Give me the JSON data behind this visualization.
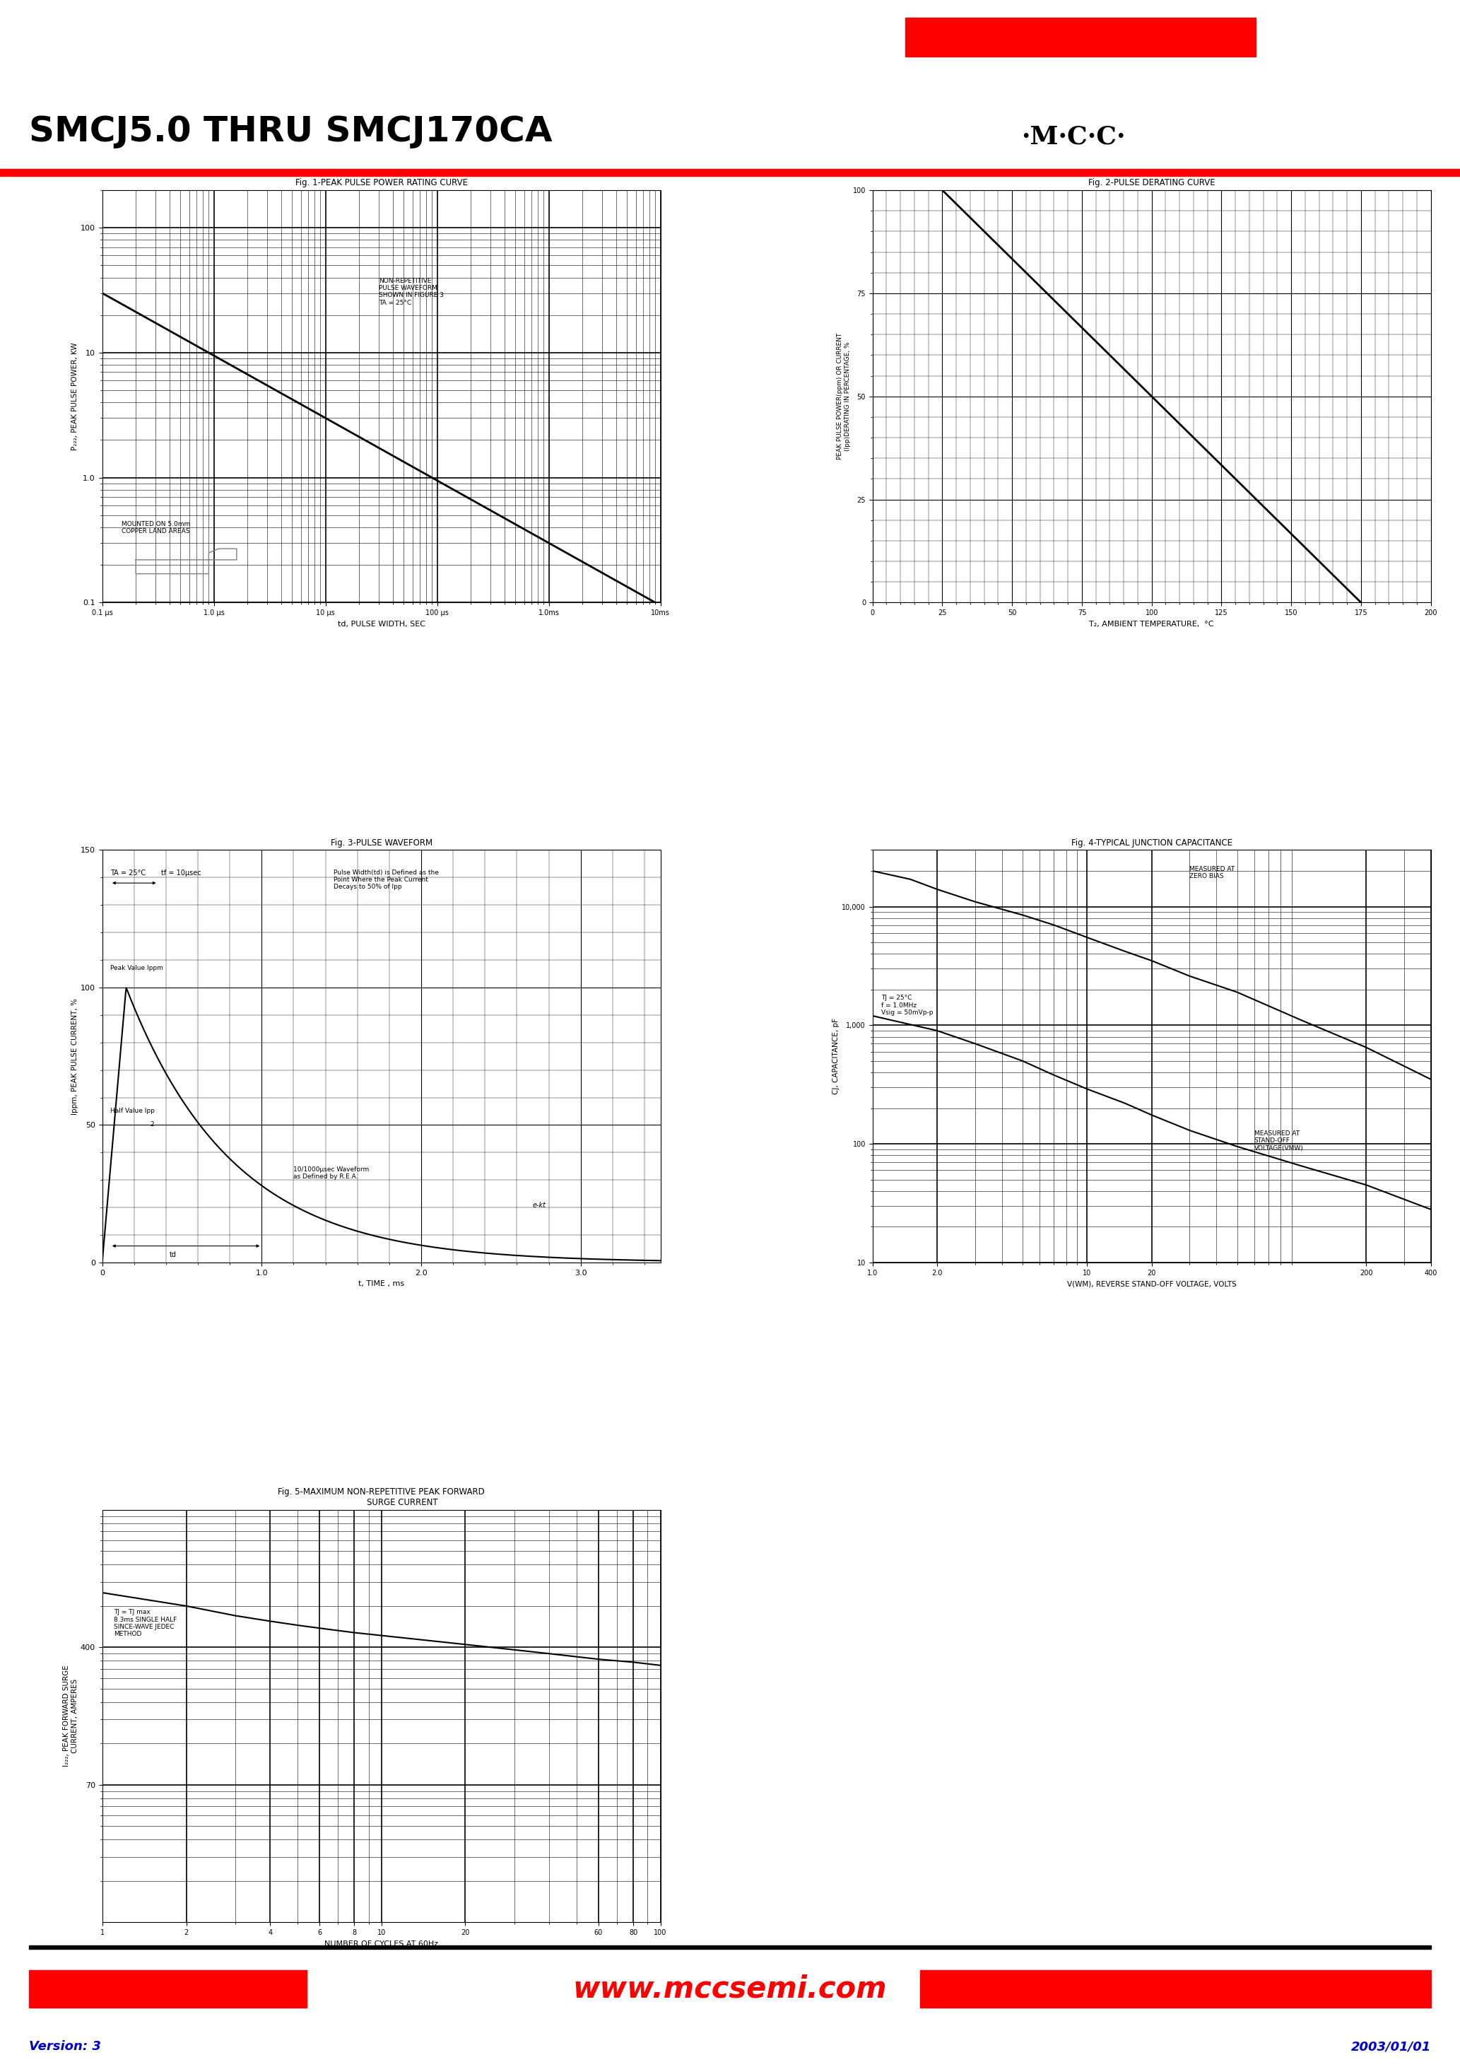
{
  "title": "SMCJ5.0 THRU SMCJ170CA",
  "bg_color": "#ffffff",
  "red_color": "#ff0000",
  "black_color": "#000000",
  "blue_color": "#0000cc",
  "version_text": "Version: 3",
  "date_text": "2003/01/01",
  "fig1_title": "Fig. 1-PEAK PULSE POWER RATING CURVE",
  "fig2_title": "Fig. 2-PULSE DERATING CURVE",
  "fig3_title": "Fig. 3-PULSE WAVEFORM",
  "fig4_title": "Fig. 4-TYPICAL JUNCTION CAPACITANCE",
  "fig5_title": "Fig. 5-MAXIMUM NON-REPETITIVE PEAK FORWARD\n                SURGE CURRENT",
  "fig1_ylabel": "P₂₂₂, PEAK PULSE POWER, KW",
  "fig1_xlabel": "td, PULSE WIDTH, SEC",
  "fig2_ylabel": "PEAK PULSE POWER(ppm) OR CURRENT\n(Ipp)DERATING IN PERCENTAGE, %",
  "fig2_xlabel": "T₂, AMBIENT TEMPERATURE,  °C",
  "fig3_ylabel": "Ippm, PEAK PULSE CURRENT, %",
  "fig3_xlabel": "t, TIME , ms",
  "fig4_ylabel": "CJ, CAPACITANCE, pF",
  "fig4_xlabel": "V(WM), REVERSE STAND-OFF VOLTAGE, VOLTS",
  "fig5_ylabel": "I₂₂₂, PEAK FORWARD SURGE\nCURRENT, AMPERES",
  "fig5_xlabel": "NUMBER OF CYCLES AT 60Hz"
}
